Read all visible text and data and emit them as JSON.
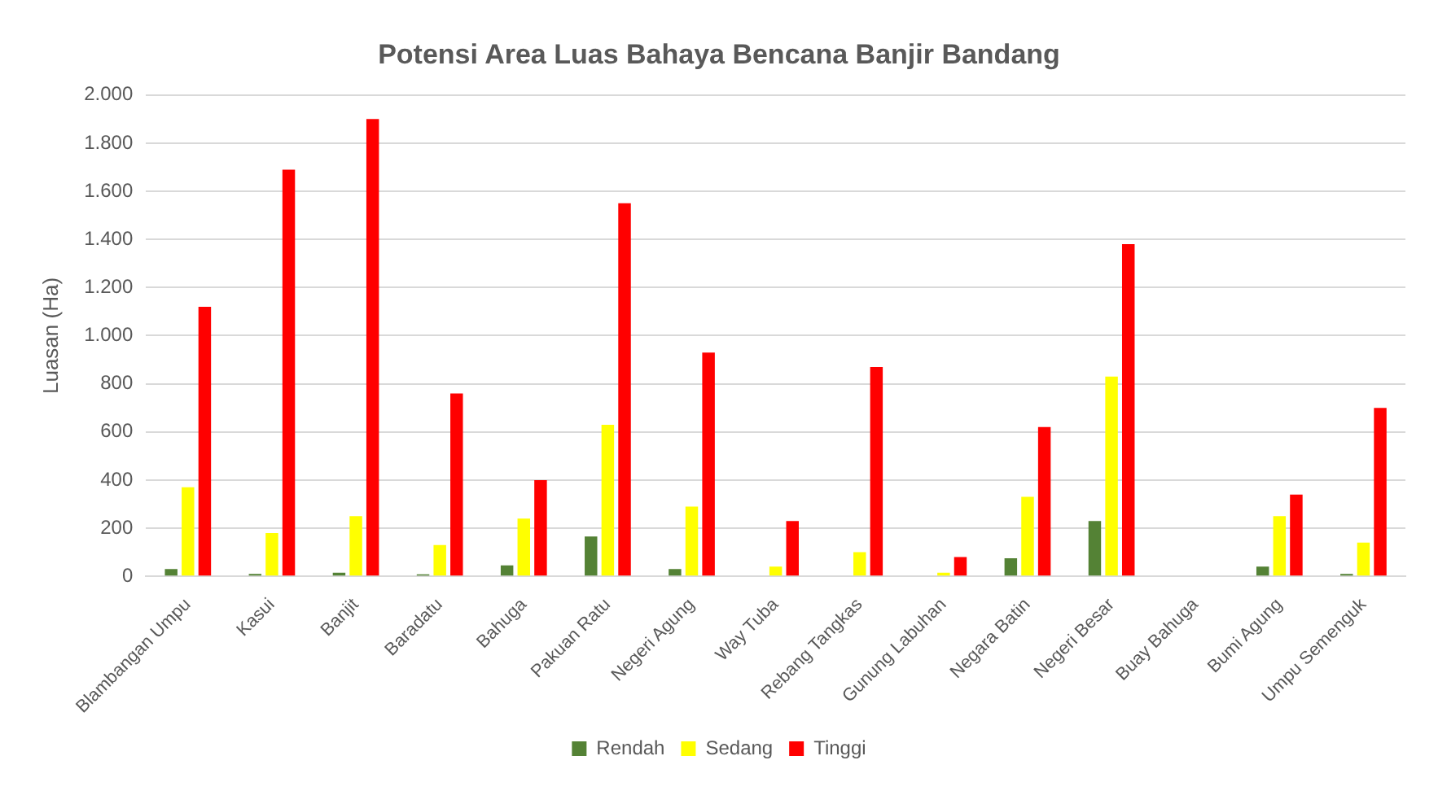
{
  "chart_data": {
    "type": "bar",
    "title": "Potensi Area Luas Bahaya Bencana Banjir Bandang",
    "ylabel": "Luasan (Ha)",
    "categories": [
      "Blambangan Umpu",
      "Kasui",
      "Banjit",
      "Baradatu",
      "Bahuga",
      "Pakuan Ratu",
      "Negeri Agung",
      "Way Tuba",
      "Rebang Tangkas",
      "Gunung Labuhan",
      "Negara Batin",
      "Negeri Besar",
      "Buay Bahuga",
      "Bumi Agung",
      "Umpu Semenguk"
    ],
    "series": [
      {
        "name": "Rendah",
        "color": "#548235",
        "values": [
          30,
          10,
          15,
          8,
          45,
          165,
          30,
          0,
          0,
          0,
          75,
          230,
          0,
          40,
          10
        ]
      },
      {
        "name": "Sedang",
        "color": "#ffff00",
        "values": [
          370,
          180,
          250,
          130,
          240,
          630,
          290,
          40,
          100,
          15,
          330,
          830,
          0,
          250,
          140
        ]
      },
      {
        "name": "Tinggi",
        "color": "#ff0000",
        "values": [
          1120,
          1690,
          1900,
          760,
          400,
          1550,
          930,
          230,
          870,
          80,
          620,
          1380,
          0,
          340,
          700
        ]
      }
    ],
    "ylim": [
      0,
      2000
    ],
    "yticks": [
      0,
      {
        "value": 200,
        "label": "200"
      },
      {
        "value": 400,
        "label": "400"
      },
      {
        "value": 600,
        "label": "600"
      },
      {
        "value": 800,
        "label": "800"
      },
      {
        "value": 1000,
        "label": "1.000"
      },
      {
        "value": 1200,
        "label": "1.200"
      },
      {
        "value": 1400,
        "label": "1.400"
      },
      {
        "value": 1600,
        "label": "1.600"
      },
      {
        "value": 1800,
        "label": "1.800"
      },
      {
        "value": 2000,
        "label": "2.000"
      }
    ],
    "grid": "y",
    "legend": "bottom"
  }
}
